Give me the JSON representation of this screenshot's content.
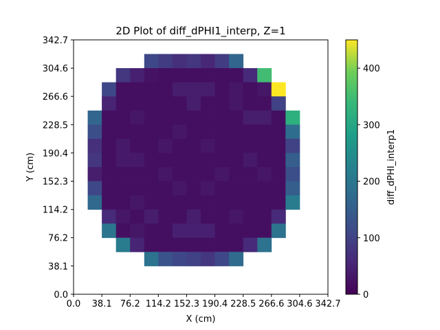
{
  "chart_data": {
    "type": "heatmap",
    "title": "2D Plot of diff_dPHI1_interp, Z=1",
    "xlabel": "X (cm)",
    "ylabel": "Y (cm)",
    "xlim": [
      0.0,
      342.7
    ],
    "ylim": [
      0.0,
      342.7
    ],
    "x_ticks": [
      "0.0",
      "38.1",
      "76.2",
      "114.2",
      "152.3",
      "190.4",
      "228.5",
      "266.6",
      "304.6",
      "342.7"
    ],
    "y_ticks": [
      "0.0",
      "38.1",
      "76.2",
      "114.2",
      "152.3",
      "190.4",
      "228.5",
      "266.6",
      "304.6",
      "342.7"
    ],
    "grid": false,
    "colorbar": {
      "label": "diff_dPHI_interp1",
      "colormap": "viridis",
      "range": [
        0,
        450
      ],
      "ticks": [
        "0",
        "100",
        "200",
        "300",
        "400"
      ]
    },
    "cell_size": 19.04,
    "rows_top_to_bottom": [
      [
        null,
        null,
        null,
        null,
        null,
        null,
        null,
        null,
        null,
        null,
        null,
        null,
        null,
        null,
        null,
        null,
        null,
        null
      ],
      [
        null,
        null,
        null,
        null,
        null,
        110,
        90,
        70,
        80,
        55,
        90,
        165,
        null,
        null,
        null,
        null,
        null,
        null
      ],
      [
        null,
        null,
        null,
        80,
        45,
        25,
        20,
        20,
        20,
        20,
        20,
        20,
        60,
        350,
        null,
        null,
        null,
        null
      ],
      [
        null,
        null,
        110,
        20,
        20,
        20,
        20,
        40,
        40,
        40,
        20,
        30,
        20,
        30,
        450,
        null,
        null,
        null
      ],
      [
        null,
        null,
        50,
        20,
        20,
        20,
        20,
        20,
        40,
        20,
        20,
        30,
        20,
        20,
        100,
        null,
        null,
        null
      ],
      [
        null,
        165,
        20,
        20,
        30,
        20,
        20,
        20,
        20,
        20,
        20,
        20,
        40,
        40,
        20,
        320,
        null,
        null
      ],
      [
        null,
        120,
        20,
        20,
        20,
        20,
        20,
        30,
        20,
        20,
        20,
        20,
        20,
        20,
        20,
        180,
        null,
        null
      ],
      [
        null,
        70,
        20,
        35,
        20,
        20,
        30,
        20,
        20,
        30,
        20,
        20,
        20,
        20,
        20,
        100,
        null,
        null
      ],
      [
        null,
        80,
        20,
        35,
        35,
        20,
        20,
        20,
        20,
        20,
        20,
        20,
        35,
        20,
        20,
        150,
        null,
        null
      ],
      [
        null,
        40,
        20,
        20,
        20,
        20,
        30,
        20,
        20,
        20,
        30,
        20,
        20,
        30,
        20,
        120,
        null,
        null
      ],
      [
        null,
        110,
        20,
        20,
        20,
        20,
        20,
        30,
        20,
        30,
        20,
        20,
        20,
        20,
        20,
        150,
        null,
        null
      ],
      [
        null,
        170,
        20,
        20,
        30,
        20,
        20,
        20,
        20,
        20,
        20,
        20,
        20,
        20,
        20,
        210,
        null,
        null
      ],
      [
        null,
        null,
        60,
        30,
        20,
        40,
        20,
        20,
        40,
        20,
        20,
        30,
        20,
        20,
        60,
        null,
        null,
        null
      ],
      [
        null,
        null,
        200,
        20,
        30,
        20,
        20,
        45,
        45,
        45,
        20,
        20,
        20,
        20,
        190,
        null,
        null,
        null
      ],
      [
        null,
        null,
        null,
        210,
        50,
        20,
        20,
        20,
        20,
        20,
        20,
        20,
        60,
        190,
        null,
        null,
        null,
        null
      ],
      [
        null,
        null,
        null,
        null,
        null,
        190,
        130,
        110,
        100,
        80,
        110,
        175,
        null,
        null,
        null,
        null,
        null,
        null
      ],
      [
        null,
        null,
        null,
        null,
        null,
        null,
        null,
        null,
        null,
        null,
        null,
        null,
        null,
        null,
        null,
        null,
        null,
        null
      ],
      [
        null,
        null,
        null,
        null,
        null,
        null,
        null,
        null,
        null,
        null,
        null,
        null,
        null,
        null,
        null,
        null,
        null,
        null
      ]
    ]
  }
}
